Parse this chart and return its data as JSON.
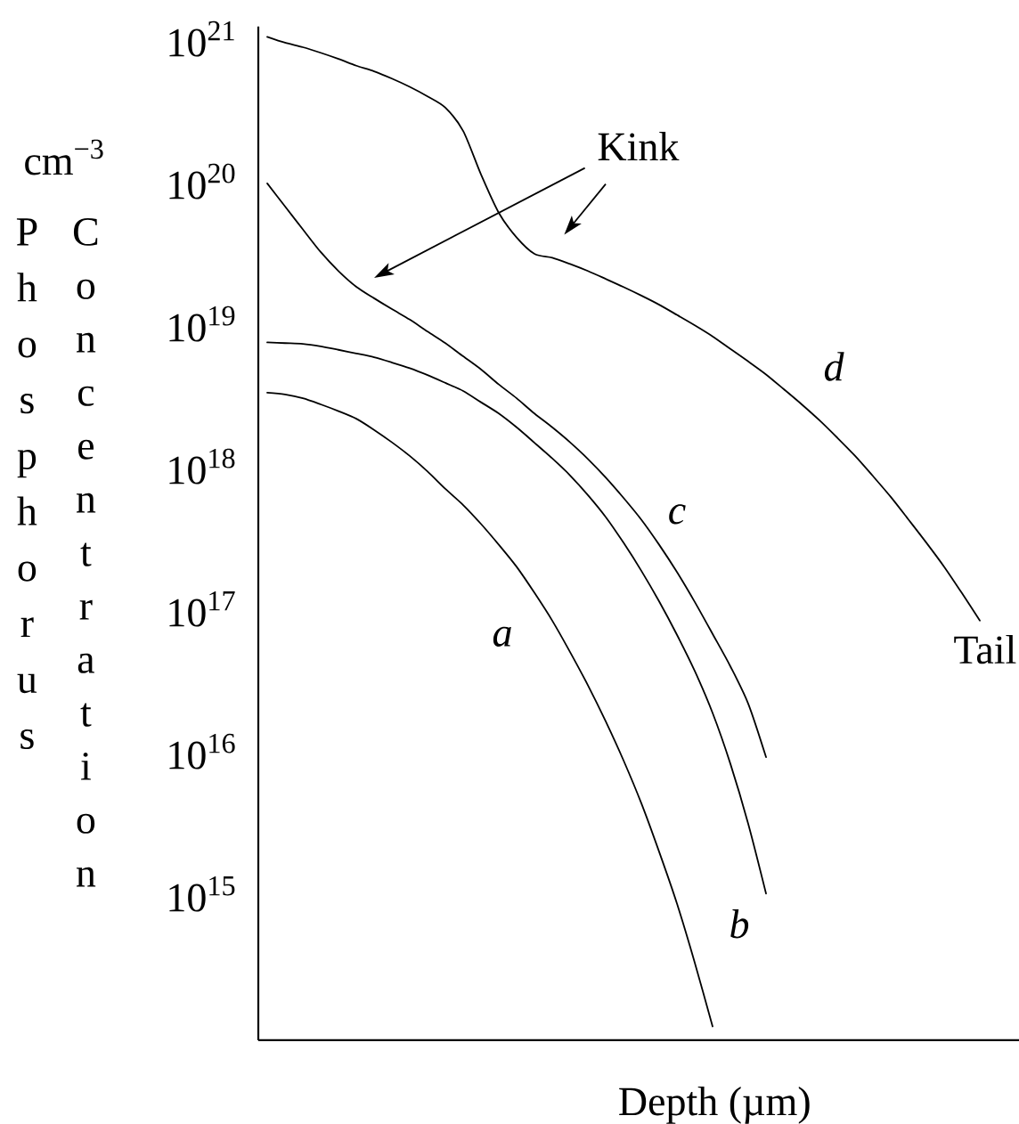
{
  "chart_data": {
    "type": "line",
    "xlabel": "Depth (µm)",
    "ylabel": "Phosphorus Concentration",
    "annotations": [
      "cm$^{−3}$",
      "Kink",
      "Tail"
    ],
    "categories": [
      null,
      null,
      null,
      null,
      null,
      null,
      null,
      null,
      null,
      null,
      null,
      null,
      null,
      null,
      null,
      null,
      null,
      null,
      null,
      null,
      null,
      null,
      null,
      null,
      null,
      null,
      null,
      null,
      null,
      null,
      null,
      null,
      null,
      null,
      null,
      null,
      null,
      null,
      null,
      null,
      null
    ],
    "series": [
      {
        "name": "a",
        "color": "#000000",
        "values": [
          3.5e+18,
          3.4e+18,
          3.2e+18,
          2.9e+18,
          2.6e+18,
          2.3e+18,
          1.92e+18,
          1.57e+18,
          1.26e+18,
          9.8e+17,
          7.4e+17,
          5.7e+17,
          4.2e+17,
          3e+17,
          2.1e+17,
          1.38e+17,
          8.8e+16,
          5.3e+16,
          3.1e+16,
          1.73e+16,
          9200000000000000.0,
          4600000000000000.0,
          2100000000000000.0,
          910000000000000.0,
          350000000000000.0,
          125000000000000.0,
          null,
          null,
          null,
          null,
          null,
          null,
          null,
          null,
          null,
          null,
          null,
          null,
          null,
          null,
          null
        ]
      },
      {
        "name": "b",
        "color": "#000000",
        "values": [
          7.9e+18,
          7.8e+18,
          7.7e+18,
          7.4e+18,
          7e+18,
          6.6e+18,
          6.2e+18,
          5.7e+18,
          5.2e+18,
          4.65e+18,
          4.1e+18,
          3.6e+18,
          3e+18,
          2.5e+18,
          2e+18,
          1.56e+18,
          1.21e+18,
          9.2e+17,
          6.7e+17,
          4.7e+17,
          3.1e+17,
          1.97e+17,
          1.2e+17,
          7e+16,
          3.9e+16,
          1.98e+16,
          8700000000000000.0,
          3300000000000000.0,
          1070000000000000.0,
          null,
          null,
          null,
          null,
          null,
          null,
          null,
          null,
          null,
          null,
          null,
          null
        ]
      },
      {
        "name": "c",
        "color": "#000000",
        "values": [
          1.03e+20,
          7.1e+19,
          4.9e+19,
          3.4e+19,
          2.5e+19,
          1.94e+19,
          1.61e+19,
          1.35e+19,
          1.14e+19,
          9.4e+18,
          7.8e+18,
          6.3e+18,
          5.1e+18,
          4e+18,
          3.2e+18,
          2.5e+18,
          2e+18,
          1.57e+18,
          1.2e+18,
          8.9e+17,
          6.4e+17,
          4.5e+17,
          3e+17,
          1.93e+17,
          1.19e+17,
          7.1e+16,
          4.2e+16,
          2.3e+16,
          9700000000000000.0,
          null,
          null,
          null,
          null,
          null,
          null,
          null,
          null,
          null,
          null,
          null,
          null
        ]
      },
      {
        "name": "d",
        "color": "#000000",
        "values": [
          1.1e+21,
          1e+21,
          9.3e+20,
          8.5e+20,
          7.7e+20,
          6.9e+20,
          6.3e+20,
          5.6e+20,
          4.9e+20,
          4.2e+20,
          3.5e+20,
          2.4e+20,
          1.19e+20,
          6.4e+19,
          4.3e+19,
          3.3e+19,
          3.1e+19,
          2.8e+19,
          2.5e+19,
          2.2e+19,
          1.93e+19,
          1.68e+19,
          1.45e+19,
          1.23e+19,
          1.04e+19,
          8.7e+18,
          7.1e+18,
          5.8e+18,
          4.7e+18,
          3.7e+18,
          2.9e+18,
          2.24e+18,
          1.69e+18,
          1.26e+18,
          9.1e+17,
          6.5e+17,
          4.5e+17,
          3.1e+17,
          2.1e+17,
          1.37e+17,
          8.8e+16
        ]
      }
    ],
    "ylim": [
      100000000000000.0,
      1.3e+21
    ],
    "yticks": [
      {
        "value": 1000000000000000.0,
        "label": "10$^{15}$"
      },
      {
        "value": 1e+16,
        "label": "10$^{16}$"
      },
      {
        "value": 1e+17,
        "label": "10$^{17}$"
      },
      {
        "value": 1e+18,
        "label": "10$^{18}$"
      },
      {
        "value": 1e+19,
        "label": "10$^{19}$"
      },
      {
        "value": 1e+20,
        "label": "10$^{20}$"
      },
      {
        "value": 1e+21,
        "label": "10$^{21}$"
      }
    ],
    "log": "y",
    "tick_labels": "y"
  }
}
